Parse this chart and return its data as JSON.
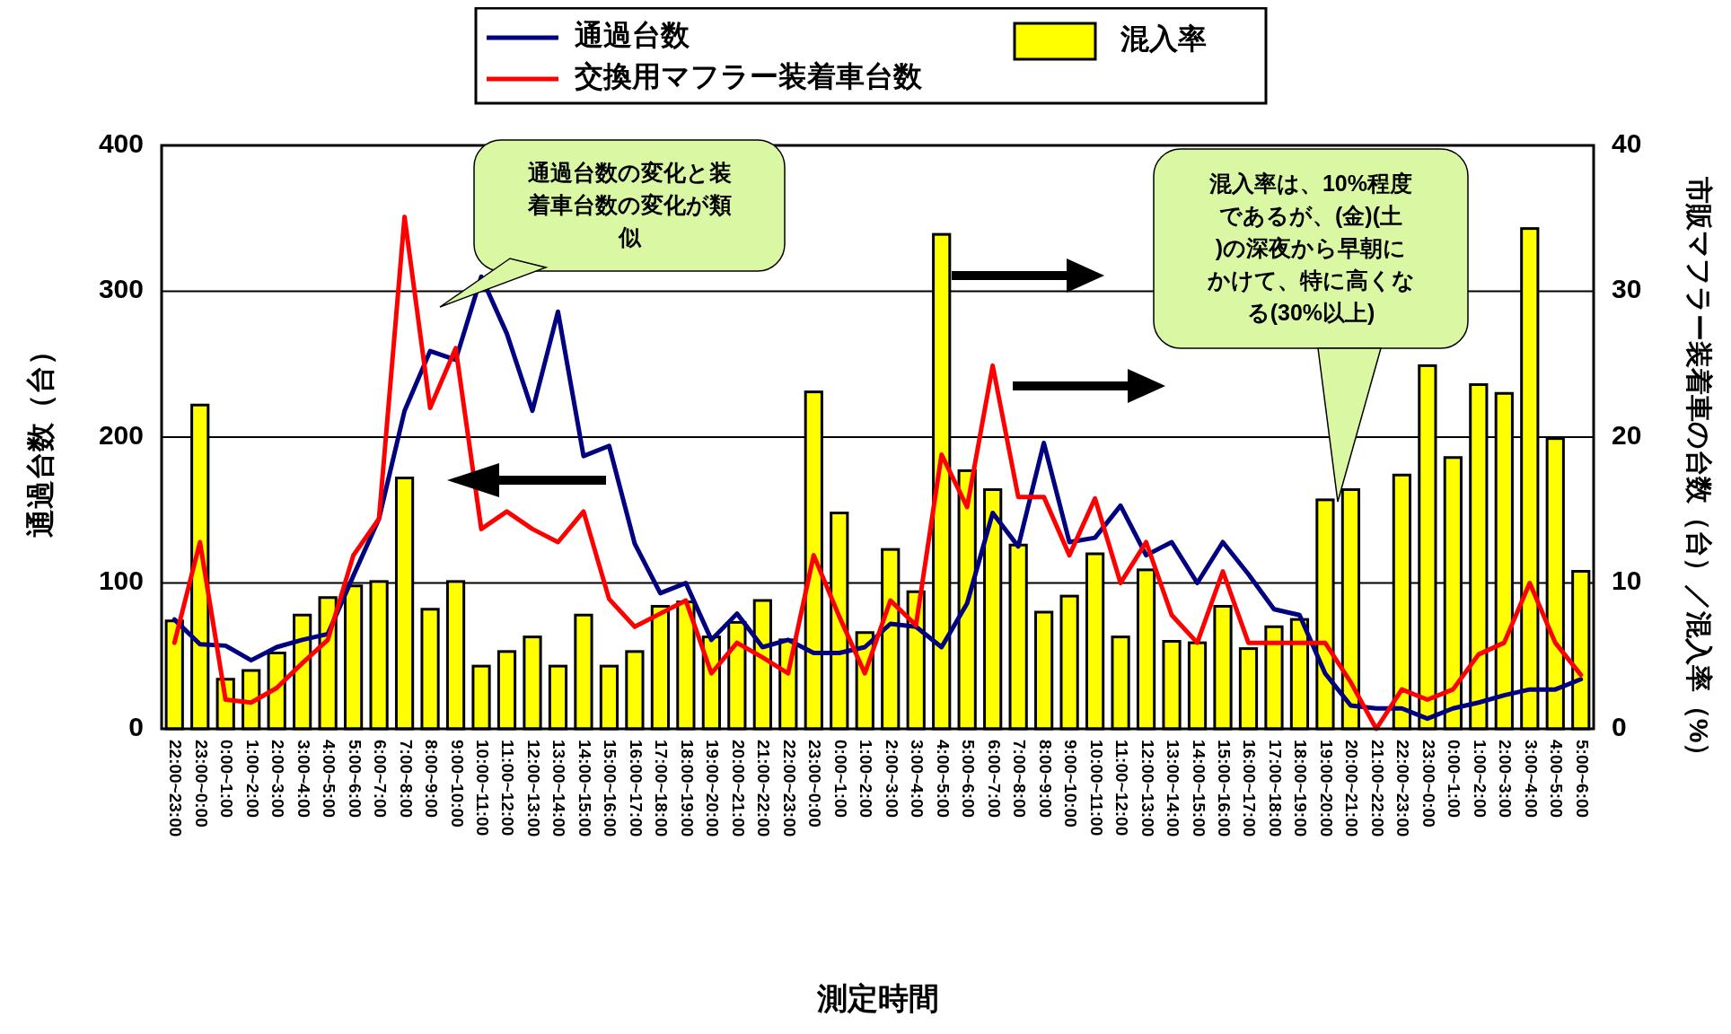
{
  "chart_data": {
    "type": "bar",
    "xlabel": "測定時間",
    "ylabel": "通過台数（台）",
    "y2label": "市販マフラー装着車の台数（台）／混入率（%）",
    "categories": [
      "22:00~23:00",
      "23:00~0:00",
      "0:00~1:00",
      "1:00~2:00",
      "2:00~3:00",
      "3:00~4:00",
      "4:00~5:00",
      "5:00~6:00",
      "6:00~7:00",
      "7:00~8:00",
      "8:00~9:00",
      "9:00~10:00",
      "10:00~11:00",
      "11:00~12:00",
      "12:00~13:00",
      "13:00~14:00",
      "14:00~15:00",
      "15:00~16:00",
      "16:00~17:00",
      "17:00~18:00",
      "18:00~19:00",
      "19:00~20:00",
      "20:00~21:00",
      "21:00~22:00",
      "22:00~23:00",
      "23:00~0:00",
      "0:00~1:00",
      "1:00~2:00",
      "2:00~3:00",
      "3:00~4:00",
      "4:00~5:00",
      "5:00~6:00",
      "6:00~7:00",
      "7:00~8:00",
      "8:00~9:00",
      "9:00~10:00",
      "10:00~11:00",
      "11:00~12:00",
      "12:00~13:00",
      "13:00~14:00",
      "14:00~15:00",
      "15:00~16:00",
      "16:00~17:00",
      "17:00~18:00",
      "18:00~19:00",
      "19:00~20:00",
      "20:00~21:00",
      "21:00~22:00",
      "22:00~23:00",
      "23:00~0:00",
      "0:00~1:00",
      "1:00~2:00",
      "2:00~3:00",
      "3:00~4:00",
      "4:00~5:00",
      "5:00~6:00"
    ],
    "series": [
      {
        "name": "混入率",
        "axis": "y2",
        "color": "#ffff00",
        "values": [
          7.4,
          22.2,
          3.4,
          4.0,
          5.2,
          7.8,
          9.0,
          9.8,
          10.1,
          17.2,
          8.2,
          10.1,
          4.3,
          5.3,
          6.3,
          4.3,
          7.8,
          4.3,
          5.3,
          8.4,
          8.7,
          6.3,
          7.3,
          8.8,
          6.1,
          23.1,
          14.8,
          6.6,
          12.3,
          9.4,
          33.9,
          17.7,
          16.4,
          12.6,
          8.0,
          9.1,
          12.0,
          6.3,
          10.9,
          6.0,
          5.9,
          8.4,
          5.5,
          7.0,
          7.5,
          15.7,
          16.4,
          0,
          17.4,
          24.9,
          18.6,
          23.6,
          23.0,
          34.3,
          19.9,
          10.8
        ]
      },
      {
        "name": "通過台数",
        "type": "line",
        "color": "#000080",
        "values": [
          75,
          58,
          57,
          47,
          56,
          61,
          65,
          105,
          144,
          218,
          259,
          253,
          310,
          271,
          218,
          286,
          187,
          194,
          127,
          93,
          100,
          61,
          79,
          56,
          61,
          52,
          52,
          56,
          72,
          70,
          56,
          86,
          148,
          125,
          196,
          128,
          131,
          153,
          119,
          128,
          100,
          128,
          106,
          82,
          78,
          38,
          16,
          14,
          14,
          7,
          14,
          18,
          23,
          27,
          27,
          34
        ]
      },
      {
        "name": "交換用マフラー装着車台数",
        "type": "line",
        "axis": "y2",
        "color": "#ff0000",
        "values": [
          5.9,
          12.8,
          2.0,
          1.8,
          2.8,
          4.5,
          6.1,
          11.9,
          14.4,
          35.1,
          22.0,
          26.1,
          13.7,
          14.9,
          13.7,
          12.8,
          14.9,
          8.9,
          7.0,
          7.9,
          8.8,
          3.8,
          5.9,
          4.9,
          3.8,
          11.9,
          7.7,
          3.8,
          8.8,
          7.1,
          18.8,
          15.2,
          24.9,
          15.9,
          15.9,
          11.9,
          15.8,
          10.0,
          12.8,
          7.8,
          5.9,
          10.8,
          5.9,
          5.9,
          5.9,
          5.9,
          3.2,
          0,
          2.7,
          2.0,
          2.7,
          5.1,
          5.9,
          10.0,
          5.9,
          3.7
        ]
      }
    ],
    "ylim": [
      0,
      400
    ],
    "yticks": [
      0,
      100,
      200,
      300,
      400
    ],
    "y2lim": [
      0,
      40
    ],
    "y2ticks": [
      0,
      10,
      20,
      30,
      40
    ],
    "grid": "y",
    "legend": "top",
    "marker": "none",
    "line_style": "solid",
    "annotations": [
      "通過台数の変化と装着車台数の変化が類似",
      "混入率は、10%程度であるが、(金)(土)の深夜から早朝にかけて、特に高くなる(30%以上)"
    ]
  }
}
